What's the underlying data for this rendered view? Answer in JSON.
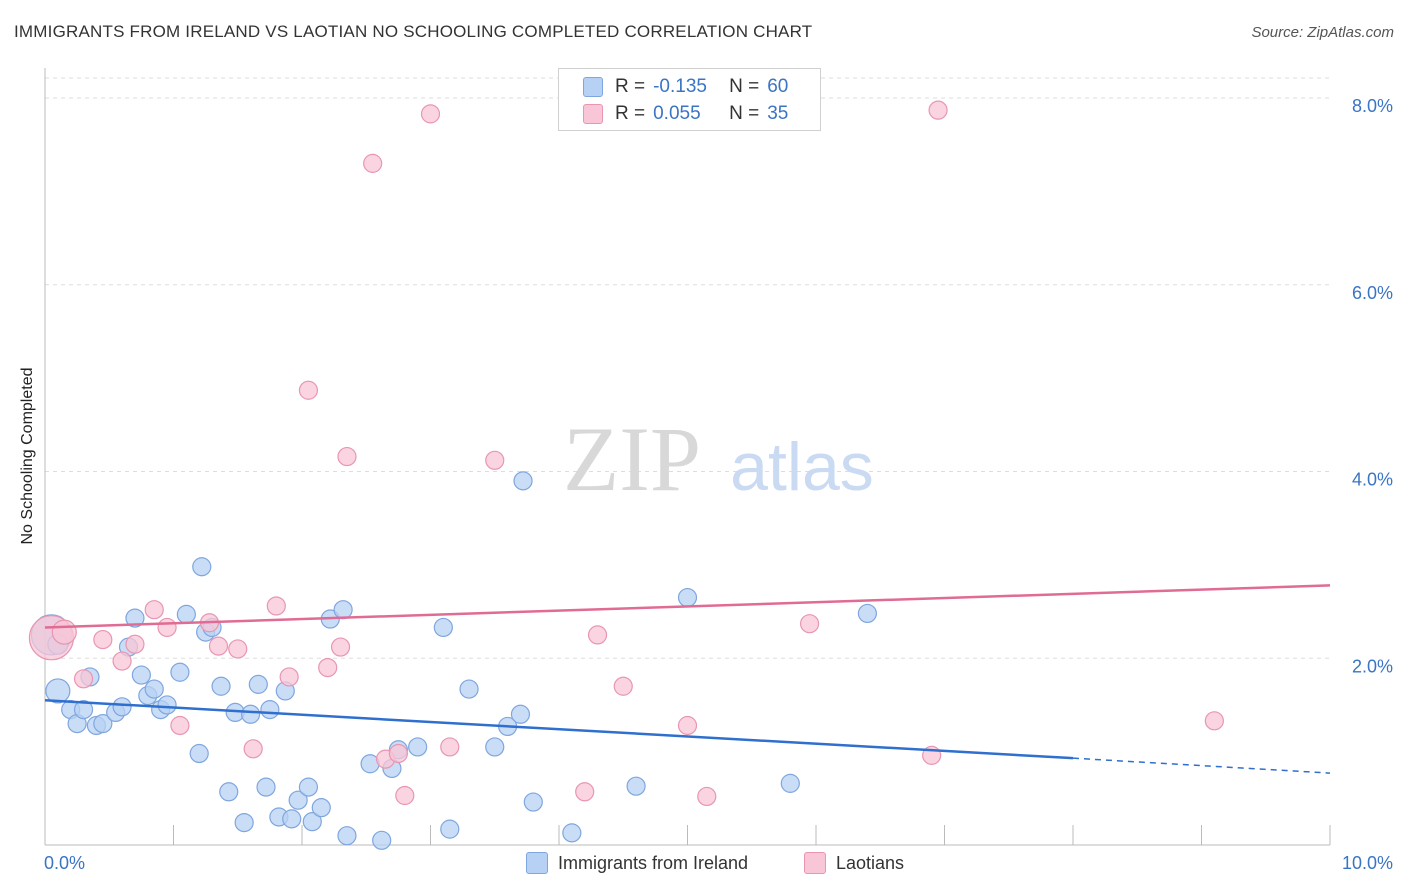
{
  "title": "IMMIGRANTS FROM IRELAND VS LAOTIAN NO SCHOOLING COMPLETED CORRELATION CHART",
  "source": "Source: ZipAtlas.com",
  "watermark": {
    "zip": "ZIP",
    "atlas": "atlas"
  },
  "colors": {
    "blue_fill": "#b7d1f4",
    "blue_stroke": "#7fa6de",
    "blue_line": "#2f6fce",
    "pink_fill": "#f8c6d6",
    "pink_stroke": "#e896b3",
    "pink_line": "#e06b94",
    "tick_label": "#3a74c4",
    "grid": "#dddddd"
  },
  "legend": {
    "r_label": "R =",
    "n_label": "N =",
    "ireland": {
      "r": "-0.135",
      "n": "60"
    },
    "laotians": {
      "r": "0.055",
      "n": "35"
    }
  },
  "chart_data": {
    "type": "scatter",
    "title": "IMMIGRANTS FROM IRELAND VS LAOTIAN NO SCHOOLING COMPLETED CORRELATION CHART",
    "xlabel": "",
    "ylabel": "No Schooling Completed",
    "xlim": [
      0,
      10
    ],
    "ylim": [
      0,
      8.3
    ],
    "x_tick_labels": [
      "0.0%",
      "10.0%"
    ],
    "y_ticks": [
      2,
      4,
      6,
      8
    ],
    "y_tick_labels": [
      "2.0%",
      "4.0%",
      "6.0%",
      "8.0%"
    ],
    "grid": true,
    "legend_position": "top-center",
    "series": [
      {
        "name": "Immigrants from Ireland",
        "color": "#b7d1f4",
        "r": -0.135,
        "n": 60,
        "trend": {
          "x0": 0,
          "y0": 1.55,
          "x1": 8.0,
          "y1": 0.93,
          "dash_to_x": 10.0,
          "dash_to_y": 0.77
        },
        "points": [
          [
            0.05,
            2.25,
            20
          ],
          [
            0.1,
            2.15,
            10
          ],
          [
            0.1,
            1.65,
            12
          ],
          [
            0.2,
            1.45,
            9
          ],
          [
            0.25,
            1.3,
            9
          ],
          [
            0.3,
            1.45,
            9
          ],
          [
            0.35,
            1.8,
            9
          ],
          [
            0.4,
            1.28,
            9
          ],
          [
            0.45,
            1.3,
            9
          ],
          [
            0.55,
            1.42,
            9
          ],
          [
            0.6,
            1.48,
            9
          ],
          [
            0.65,
            2.12,
            9
          ],
          [
            0.7,
            2.43,
            9
          ],
          [
            0.75,
            1.82,
            9
          ],
          [
            0.8,
            1.6,
            9
          ],
          [
            0.85,
            1.67,
            9
          ],
          [
            0.9,
            1.45,
            9
          ],
          [
            0.95,
            1.5,
            9
          ],
          [
            1.05,
            1.85,
            9
          ],
          [
            1.1,
            2.47,
            9
          ],
          [
            1.2,
            0.98,
            9
          ],
          [
            1.22,
            2.98,
            9
          ],
          [
            1.25,
            2.28,
            9
          ],
          [
            1.3,
            2.33,
            9
          ],
          [
            1.37,
            1.7,
            9
          ],
          [
            1.43,
            0.57,
            9
          ],
          [
            1.48,
            1.42,
            9
          ],
          [
            1.55,
            0.24,
            9
          ],
          [
            1.6,
            1.4,
            9
          ],
          [
            1.66,
            1.72,
            9
          ],
          [
            1.72,
            0.62,
            9
          ],
          [
            1.75,
            1.45,
            9
          ],
          [
            1.82,
            0.3,
            9
          ],
          [
            1.87,
            1.65,
            9
          ],
          [
            1.92,
            0.28,
            9
          ],
          [
            1.97,
            0.48,
            9
          ],
          [
            2.05,
            0.62,
            9
          ],
          [
            2.08,
            0.25,
            9
          ],
          [
            2.15,
            0.4,
            9
          ],
          [
            2.22,
            2.42,
            9
          ],
          [
            2.32,
            2.52,
            9
          ],
          [
            2.35,
            0.1,
            9
          ],
          [
            2.53,
            0.87,
            9
          ],
          [
            2.62,
            0.05,
            9
          ],
          [
            2.7,
            0.82,
            9
          ],
          [
            2.75,
            1.02,
            9
          ],
          [
            2.9,
            1.05,
            9
          ],
          [
            3.1,
            2.33,
            9
          ],
          [
            3.15,
            0.17,
            9
          ],
          [
            3.3,
            1.67,
            9
          ],
          [
            3.5,
            1.05,
            9
          ],
          [
            3.6,
            1.27,
            9
          ],
          [
            3.7,
            1.4,
            9
          ],
          [
            3.72,
            3.9,
            9
          ],
          [
            3.8,
            0.46,
            9
          ],
          [
            4.1,
            0.13,
            9
          ],
          [
            4.6,
            0.63,
            9
          ],
          [
            5.0,
            2.65,
            9
          ],
          [
            5.8,
            0.66,
            9
          ],
          [
            6.4,
            2.48,
            9
          ]
        ]
      },
      {
        "name": "Laotians",
        "color": "#f8c6d6",
        "r": 0.055,
        "n": 35,
        "trend": {
          "x0": 0,
          "y0": 2.33,
          "x1": 10.0,
          "y1": 2.78
        },
        "points": [
          [
            0.05,
            2.22,
            22
          ],
          [
            0.15,
            2.28,
            12
          ],
          [
            0.3,
            1.78,
            9
          ],
          [
            0.45,
            2.2,
            9
          ],
          [
            0.6,
            1.97,
            9
          ],
          [
            0.7,
            2.15,
            9
          ],
          [
            0.85,
            2.52,
            9
          ],
          [
            0.95,
            2.33,
            9
          ],
          [
            1.05,
            1.28,
            9
          ],
          [
            1.28,
            2.38,
            9
          ],
          [
            1.35,
            2.13,
            9
          ],
          [
            1.5,
            2.1,
            9
          ],
          [
            1.62,
            1.03,
            9
          ],
          [
            1.8,
            2.56,
            9
          ],
          [
            1.9,
            1.8,
            9
          ],
          [
            2.05,
            4.87,
            9
          ],
          [
            2.2,
            1.9,
            9
          ],
          [
            2.3,
            2.12,
            9
          ],
          [
            2.35,
            4.16,
            9
          ],
          [
            2.55,
            7.3,
            9
          ],
          [
            2.65,
            0.92,
            9
          ],
          [
            2.75,
            0.98,
            9
          ],
          [
            2.8,
            0.53,
            9
          ],
          [
            3.0,
            7.83,
            9
          ],
          [
            3.15,
            1.05,
            9
          ],
          [
            3.5,
            4.12,
            9
          ],
          [
            4.2,
            0.57,
            9
          ],
          [
            4.3,
            2.25,
            9
          ],
          [
            4.5,
            1.7,
            9
          ],
          [
            5.0,
            1.28,
            9
          ],
          [
            5.15,
            0.52,
            9
          ],
          [
            5.95,
            2.37,
            9
          ],
          [
            6.9,
            0.96,
            9
          ],
          [
            6.95,
            7.87,
            9
          ],
          [
            9.1,
            1.33,
            9
          ]
        ]
      }
    ]
  }
}
